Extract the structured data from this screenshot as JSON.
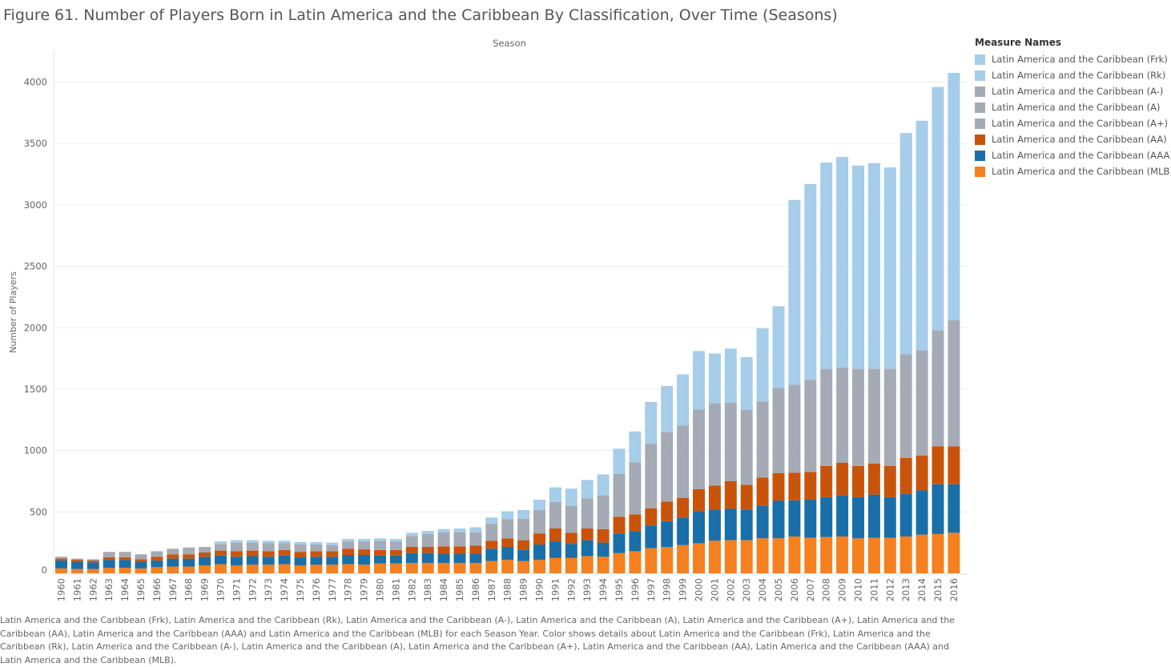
{
  "title": "Figure 61. Number of Players Born in Latin America and the Caribbean By  Classification, Over Time (Seasons)",
  "caption": "Latin America and the Caribbean (Frk), Latin America and the Caribbean (Rk), Latin America and the Caribbean (A-), Latin America and the Caribbean (A), Latin America and the Caribbean (A+), Latin America and the Caribbean (AA), Latin America and the Caribbean (AAA) and Latin America and the Caribbean (MLB) for each Season Year.  Color shows details about Latin America and the Caribbean (Frk), Latin America and the Caribbean (Rk), Latin America and the Caribbean (A-), Latin America and the Caribbean (A), Latin America and the Caribbean (A+), Latin America and the Caribbean (AA), Latin America and the Caribbean (AAA) and Latin America and the Caribbean (MLB).",
  "legend": {
    "title": "Measure Names",
    "items": [
      {
        "label": "Latin America and the Caribbean (Frk)",
        "color": "#a6cde9"
      },
      {
        "label": "Latin America and the Caribbean (Rk)",
        "color": "#a6cde9"
      },
      {
        "label": "Latin America and the Caribbean (A-)",
        "color": "#a5abb5"
      },
      {
        "label": "Latin America and the Caribbean (A)",
        "color": "#a5abb5"
      },
      {
        "label": "Latin America and the Caribbean (A+)",
        "color": "#a5abb5"
      },
      {
        "label": "Latin America and the Caribbean (AA)",
        "color": "#c8540b"
      },
      {
        "label": "Latin America and the Caribbean (AAA)",
        "color": "#1a6fa8"
      },
      {
        "label": "Latin America and the Caribbean (MLB)",
        "color": "#f5801f"
      }
    ]
  },
  "chart_data": {
    "type": "bar",
    "stacked": true,
    "xlabel": "Season",
    "ylabel": "Number of Players",
    "ylim": [
      0,
      4250
    ],
    "yticks": [
      0,
      500,
      1000,
      1500,
      2000,
      2500,
      3000,
      3500,
      4000
    ],
    "grid": true,
    "legend_position": "right",
    "categories": [
      "1960",
      "1961",
      "1962",
      "1963",
      "1964",
      "1965",
      "1966",
      "1967",
      "1968",
      "1969",
      "1970",
      "1971",
      "1972",
      "1973",
      "1974",
      "1975",
      "1976",
      "1977",
      "1978",
      "1979",
      "1980",
      "1981",
      "1982",
      "1983",
      "1984",
      "1985",
      "1986",
      "1987",
      "1988",
      "1989",
      "1990",
      "1991",
      "1992",
      "1993",
      "1994",
      "1995",
      "1996",
      "1997",
      "1998",
      "1999",
      "2000",
      "2001",
      "2002",
      "2003",
      "2004",
      "2005",
      "2006",
      "2007",
      "2008",
      "2009",
      "2010",
      "2011",
      "2012",
      "2013",
      "2014",
      "2015",
      "2016"
    ],
    "series": [
      {
        "name": "Latin America and the Caribbean (MLB)",
        "color": "#f5801f",
        "values": [
          40,
          35,
          35,
          45,
          45,
          40,
          50,
          55,
          55,
          65,
          75,
          65,
          70,
          70,
          75,
          65,
          70,
          70,
          75,
          70,
          80,
          80,
          85,
          85,
          85,
          85,
          85,
          100,
          110,
          100,
          110,
          125,
          125,
          140,
          135,
          165,
          180,
          205,
          215,
          230,
          245,
          265,
          270,
          270,
          285,
          285,
          300,
          290,
          295,
          300,
          285,
          290,
          290,
          300,
          315,
          320,
          330
        ]
      },
      {
        "name": "Latin America and the Caribbean (AAA)",
        "color": "#1a6fa8",
        "values": [
          65,
          60,
          55,
          65,
          65,
          55,
          55,
          65,
          65,
          70,
          70,
          70,
          70,
          65,
          70,
          65,
          65,
          65,
          75,
          80,
          65,
          65,
          80,
          80,
          75,
          75,
          75,
          100,
          105,
          90,
          125,
          135,
          115,
          130,
          115,
          160,
          165,
          185,
          210,
          220,
          260,
          250,
          255,
          250,
          265,
          305,
          295,
          310,
          325,
          335,
          335,
          350,
          330,
          345,
          360,
          405,
          395
        ]
      },
      {
        "name": "Latin America and the Caribbean (AA)",
        "color": "#c8540b",
        "values": [
          15,
          15,
          15,
          20,
          20,
          20,
          30,
          35,
          35,
          35,
          40,
          45,
          45,
          45,
          45,
          45,
          45,
          45,
          50,
          45,
          45,
          45,
          50,
          50,
          60,
          60,
          65,
          65,
          70,
          80,
          90,
          105,
          90,
          95,
          110,
          135,
          135,
          140,
          160,
          165,
          180,
          200,
          225,
          200,
          230,
          225,
          225,
          225,
          255,
          265,
          255,
          255,
          255,
          295,
          285,
          310,
          310
        ]
      },
      {
        "name": "Latin America and the Caribbean (A+)",
        "color": "#a5abb5",
        "values": [
          0,
          0,
          0,
          0,
          0,
          0,
          0,
          0,
          0,
          0,
          0,
          0,
          0,
          0,
          0,
          0,
          0,
          0,
          0,
          0,
          0,
          0,
          0,
          0,
          0,
          0,
          0,
          0,
          0,
          0,
          0,
          0,
          0,
          0,
          0,
          0,
          0,
          0,
          0,
          0,
          0,
          0,
          0,
          0,
          0,
          0,
          0,
          0,
          0,
          0,
          0,
          0,
          0,
          0,
          0,
          0,
          0
        ]
      },
      {
        "name": "Latin America and the Caribbean (A)",
        "color": "#a5abb5",
        "values": [
          0,
          0,
          0,
          0,
          0,
          0,
          0,
          0,
          0,
          0,
          0,
          0,
          0,
          0,
          0,
          0,
          0,
          0,
          0,
          0,
          0,
          0,
          0,
          0,
          0,
          0,
          0,
          0,
          0,
          0,
          0,
          0,
          0,
          0,
          0,
          0,
          0,
          0,
          0,
          0,
          0,
          0,
          0,
          0,
          0,
          0,
          0,
          0,
          0,
          0,
          0,
          0,
          0,
          0,
          0,
          0,
          0
        ]
      },
      {
        "name": "Latin America and the Caribbean (A-)",
        "color": "#a5abb5",
        "values": [
          15,
          10,
          10,
          45,
          45,
          40,
          45,
          45,
          55,
          45,
          55,
          70,
          65,
          65,
          55,
          60,
          55,
          50,
          60,
          65,
          75,
          70,
          90,
          105,
          115,
          115,
          110,
          140,
          155,
          175,
          190,
          215,
          220,
          245,
          275,
          350,
          425,
          525,
          565,
          590,
          650,
          670,
          640,
          610,
          620,
          695,
          715,
          750,
          790,
          775,
          790,
          770,
          790,
          845,
          855,
          945,
          1025
        ]
      },
      {
        "name": "Latin America and the Caribbean (Rk)",
        "color": "#a6cde9",
        "values": [
          0,
          0,
          0,
          0,
          0,
          0,
          0,
          0,
          0,
          0,
          0,
          0,
          0,
          0,
          0,
          0,
          0,
          0,
          0,
          0,
          0,
          0,
          0,
          0,
          0,
          0,
          0,
          0,
          0,
          0,
          0,
          0,
          0,
          0,
          0,
          0,
          0,
          0,
          0,
          0,
          0,
          0,
          0,
          0,
          0,
          0,
          0,
          0,
          0,
          0,
          0,
          0,
          0,
          0,
          0,
          0,
          0
        ]
      },
      {
        "name": "Latin America and the Caribbean (Frk)",
        "color": "#a6cde9",
        "values": [
          0,
          0,
          0,
          0,
          0,
          0,
          0,
          0,
          0,
          0,
          20,
          20,
          20,
          20,
          20,
          20,
          20,
          20,
          20,
          20,
          20,
          20,
          25,
          25,
          25,
          30,
          40,
          50,
          65,
          70,
          85,
          120,
          140,
          150,
          170,
          205,
          250,
          340,
          375,
          415,
          475,
          405,
          440,
          430,
          595,
          665,
          1505,
          1595,
          1680,
          1715,
          1655,
          1675,
          1640,
          1800,
          1870,
          1980,
          2015
        ]
      }
    ]
  }
}
